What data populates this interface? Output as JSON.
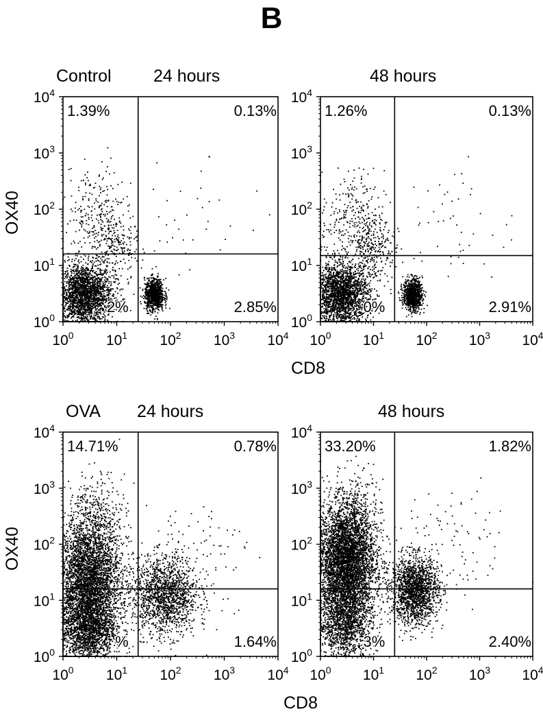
{
  "figure_label": "B",
  "rows": [
    {
      "group_label": "Control",
      "ylabel": "OX40",
      "xlabel": "CD8"
    },
    {
      "group_label": "OVA",
      "ylabel": "OX40",
      "xlabel": "CD8"
    }
  ],
  "chart_data": [
    {
      "type": "scatter",
      "title": "24 hours",
      "group": "Control",
      "xlabel": "",
      "ylabel": "OX40",
      "xscale": "log",
      "yscale": "log",
      "xlim": [
        1,
        10000
      ],
      "ylim": [
        1,
        10000
      ],
      "x_ticks": [
        "10^0",
        "10^1",
        "10^2",
        "10^3",
        "10^4"
      ],
      "y_ticks": [
        "10^0",
        "10^1",
        "10^2",
        "10^3",
        "10^4"
      ],
      "gates": {
        "x": 25,
        "y": 16
      },
      "quadrants": {
        "upper_left": "1.39%",
        "upper_right": "0.13%",
        "lower_left": "2%",
        "lower_right": "2.85%"
      },
      "populations": [
        {
          "x": 2.5,
          "y": 3,
          "sx": 0.26,
          "sy": 0.28,
          "n": 2200
        },
        {
          "x": 50,
          "y": 3,
          "sx": 0.09,
          "sy": 0.14,
          "n": 900
        },
        {
          "x": 4,
          "y": 70,
          "sx": 0.28,
          "sy": 0.45,
          "n": 260
        },
        {
          "x": 10,
          "y": 20,
          "sx": 0.2,
          "sy": 0.3,
          "n": 200
        },
        {
          "x": 200,
          "y": 40,
          "sx": 0.6,
          "sy": 0.6,
          "n": 40
        }
      ]
    },
    {
      "type": "scatter",
      "title": "48 hours",
      "group": "Control",
      "xlabel": "CD8",
      "ylabel": "",
      "xscale": "log",
      "yscale": "log",
      "xlim": [
        1,
        10000
      ],
      "ylim": [
        1,
        10000
      ],
      "x_ticks": [
        "10^0",
        "10^1",
        "10^2",
        "10^3",
        "10^4"
      ],
      "y_ticks": [
        "10^0",
        "10^1",
        "10^2",
        "10^3",
        "10^4"
      ],
      "gates": {
        "x": 25,
        "y": 15
      },
      "quadrants": {
        "upper_left": "1.26%",
        "upper_right": "0.13%",
        "lower_left": "0%",
        "lower_right": "2.91%"
      },
      "populations": [
        {
          "x": 2.5,
          "y": 3,
          "sx": 0.26,
          "sy": 0.28,
          "n": 2200
        },
        {
          "x": 55,
          "y": 3,
          "sx": 0.09,
          "sy": 0.14,
          "n": 900
        },
        {
          "x": 4,
          "y": 60,
          "sx": 0.3,
          "sy": 0.45,
          "n": 300
        },
        {
          "x": 10,
          "y": 20,
          "sx": 0.2,
          "sy": 0.3,
          "n": 250
        },
        {
          "x": 300,
          "y": 50,
          "sx": 0.6,
          "sy": 0.6,
          "n": 50
        }
      ]
    },
    {
      "type": "scatter",
      "title": "24 hours",
      "group": "OVA",
      "xlabel": "",
      "ylabel": "OX40",
      "xscale": "log",
      "yscale": "log",
      "xlim": [
        1,
        10000
      ],
      "ylim": [
        1,
        10000
      ],
      "x_ticks": [
        "10^0",
        "10^1",
        "10^2",
        "10^3",
        "10^4"
      ],
      "y_ticks": [
        "10^0",
        "10^1",
        "10^2",
        "10^3",
        "10^4"
      ],
      "gates": {
        "x": 25,
        "y": 16
      },
      "quadrants": {
        "upper_left": "14.71%",
        "upper_right": "0.78%",
        "lower_left": "%",
        "lower_right": "1.64%"
      },
      "populations": [
        {
          "x": 3,
          "y": 20,
          "sx": 0.3,
          "sy": 0.6,
          "n": 4200
        },
        {
          "x": 3,
          "y": 3,
          "sx": 0.25,
          "sy": 0.3,
          "n": 1200
        },
        {
          "x": 80,
          "y": 12,
          "sx": 0.3,
          "sy": 0.35,
          "n": 1500
        },
        {
          "x": 5,
          "y": 400,
          "sx": 0.25,
          "sy": 0.35,
          "n": 200
        },
        {
          "x": 300,
          "y": 80,
          "sx": 0.5,
          "sy": 0.5,
          "n": 80
        }
      ]
    },
    {
      "type": "scatter",
      "title": "48 hours",
      "group": "OVA",
      "xlabel": "CD8",
      "ylabel": "",
      "xscale": "log",
      "yscale": "log",
      "xlim": [
        1,
        10000
      ],
      "ylim": [
        1,
        10000
      ],
      "x_ticks": [
        "10^0",
        "10^1",
        "10^2",
        "10^3",
        "10^4"
      ],
      "y_ticks": [
        "10^0",
        "10^1",
        "10^2",
        "10^3",
        "10^4"
      ],
      "gates": {
        "x": 25,
        "y": 16
      },
      "quadrants": {
        "upper_left": "33.20%",
        "upper_right": "1.82%",
        "lower_left": "3%",
        "lower_right": "2.40%"
      },
      "populations": [
        {
          "x": 3,
          "y": 50,
          "sx": 0.28,
          "sy": 0.5,
          "n": 4500
        },
        {
          "x": 3,
          "y": 4,
          "sx": 0.25,
          "sy": 0.35,
          "n": 1400
        },
        {
          "x": 60,
          "y": 15,
          "sx": 0.22,
          "sy": 0.3,
          "n": 1700
        },
        {
          "x": 5,
          "y": 500,
          "sx": 0.25,
          "sy": 0.35,
          "n": 180
        },
        {
          "x": 400,
          "y": 100,
          "sx": 0.5,
          "sy": 0.5,
          "n": 80
        }
      ]
    }
  ]
}
